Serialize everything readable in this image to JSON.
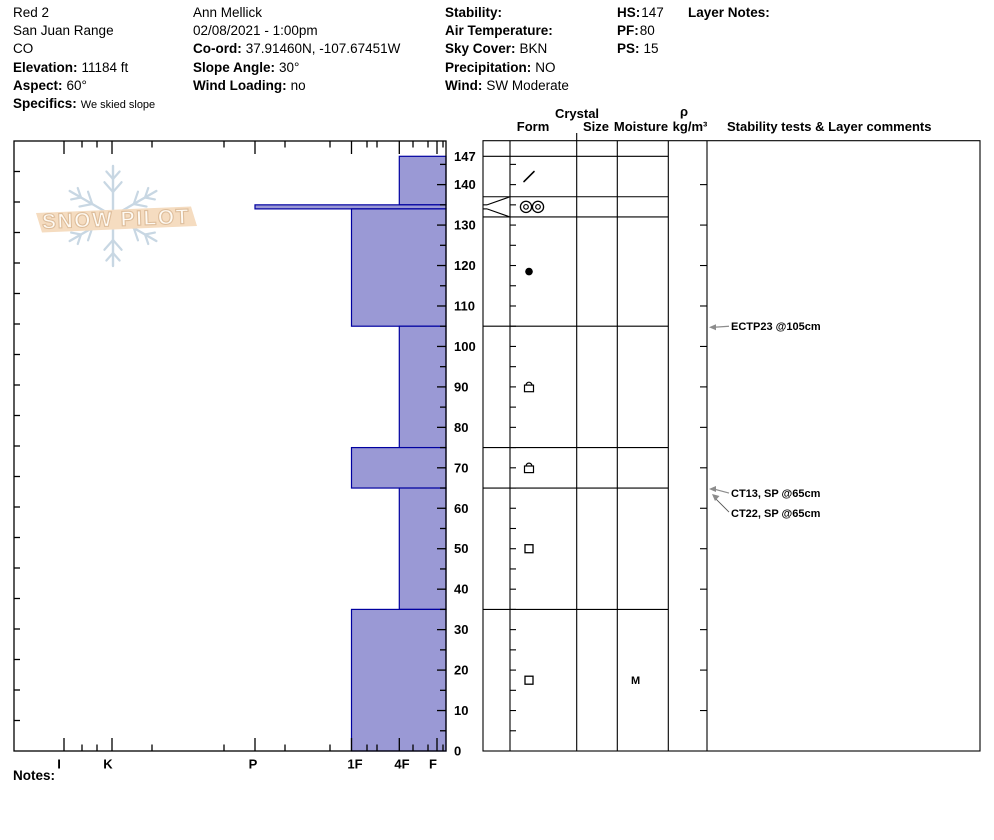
{
  "header": {
    "pit_info": {
      "name": "Red 2",
      "range": "San Juan Range",
      "state": "CO",
      "elevation_label": "Elevation:",
      "elevation": "11184 ft",
      "aspect_label": "Aspect:",
      "aspect": "60°",
      "specifics_label": "Specifics:",
      "specifics": "We skied slope"
    },
    "observer": {
      "name": "Ann Mellick",
      "datetime": "02/08/2021 - 1:00pm",
      "coord_label": "Co-ord:",
      "coord": "37.91460N, -107.67451W",
      "slope_angle_label": "Slope Angle:",
      "slope_angle": "30°",
      "wind_loading_label": "Wind Loading:",
      "wind_loading": "no"
    },
    "weather": {
      "stability_label": "Stability:",
      "stability": "",
      "air_temp_label": "Air Temperature:",
      "air_temp": "",
      "sky_label": "Sky Cover:",
      "sky": "BKN",
      "precip_label": "Precipitation:",
      "precip": "NO",
      "wind_label": "Wind:",
      "wind": "SW Moderate"
    },
    "measures": {
      "hs_label": "HS:",
      "hs": "147",
      "pf_label": "PF:",
      "pf": "80",
      "ps_label": "PS:",
      "ps": "15"
    },
    "layer_notes_label": "Layer Notes:"
  },
  "columns": {
    "crystal": "Crystal",
    "form": "Form",
    "size": "Size",
    "moisture": "Moisture",
    "rho": "ρ",
    "rho_units": "kg/m³",
    "stability": "Stability tests & Layer comments"
  },
  "watermark": {
    "text": "SNOW PILOT"
  },
  "footer": {
    "notes_label": "Notes:"
  },
  "chart_data": {
    "type": "snow-profile",
    "depth_unit": "cm",
    "total_depth_cm": 147,
    "depth_tick_labels": [
      147,
      140,
      130,
      120,
      110,
      100,
      90,
      80,
      70,
      60,
      50,
      40,
      30,
      20,
      10,
      0
    ],
    "hardness_labels": [
      "I",
      "K",
      "P",
      "1F",
      "4F",
      "F"
    ],
    "layers": [
      {
        "top_cm": 147,
        "bottom_cm": 135,
        "hardness": "4F",
        "grain_form": "decomposing-fragments",
        "symbol": "slash",
        "display_top_cm": 147,
        "display_bottom_cm": 137
      },
      {
        "top_cm": 135,
        "bottom_cm": 134,
        "hardness": "P",
        "grain_form": "melt-forms-cluster",
        "symbol": "double-circle",
        "display_top_cm": 137,
        "display_bottom_cm": 132,
        "thin_layer": true
      },
      {
        "top_cm": 134,
        "bottom_cm": 105,
        "hardness": "1F",
        "grain_form": "rounded-grains",
        "symbol": "dot",
        "display_top_cm": 132,
        "display_bottom_cm": 105
      },
      {
        "top_cm": 105,
        "bottom_cm": 75,
        "hardness": "4F",
        "grain_form": "rounding-faceted",
        "symbol": "square-cap",
        "display_top_cm": 105,
        "display_bottom_cm": 75
      },
      {
        "top_cm": 75,
        "bottom_cm": 65,
        "hardness": "1F",
        "grain_form": "rounding-faceted",
        "symbol": "square-cap",
        "display_top_cm": 75,
        "display_bottom_cm": 65
      },
      {
        "top_cm": 65,
        "bottom_cm": 35,
        "hardness": "4F",
        "grain_form": "faceted-crystals",
        "symbol": "square",
        "display_top_cm": 65,
        "display_bottom_cm": 35
      },
      {
        "top_cm": 35,
        "bottom_cm": 0,
        "hardness": "1F",
        "grain_form": "faceted-crystals",
        "symbol": "square",
        "moisture": "M",
        "display_top_cm": 35,
        "display_bottom_cm": 0
      }
    ],
    "stability_tests": [
      {
        "label": "ECTP23 @105cm",
        "depth_cm": 105,
        "label_dy": 0,
        "arrow": "left"
      },
      {
        "label": "CT13, SP @65cm",
        "depth_cm": 65,
        "label_dy": 5,
        "arrow": "left"
      },
      {
        "label": "CT22, SP @65cm",
        "depth_cm": 65,
        "label_dy": 25,
        "arrow": "diag"
      }
    ],
    "colors": {
      "bar_fill": "#9a99d5",
      "bar_border": "#0000a0",
      "arrow": "#8c8c8c",
      "flake": "#c8d7e3",
      "band": "#f5dcc0",
      "band_text_stroke": "#debe9c"
    }
  }
}
